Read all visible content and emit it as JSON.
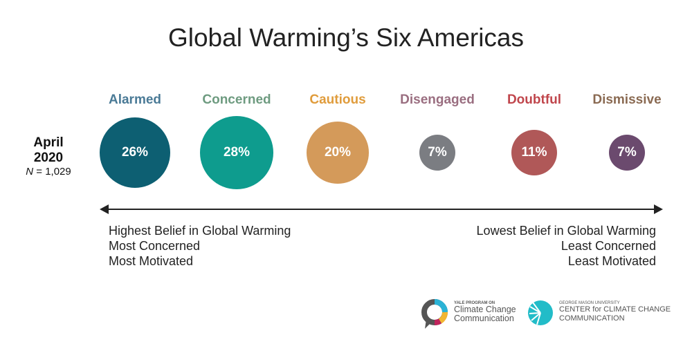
{
  "chart_data": {
    "type": "bubble",
    "title": "Global Warming’s Six Americas",
    "date_label": {
      "month": "April",
      "year": "2020",
      "n_prefix": "N",
      "n_value": "= 1,029"
    },
    "categories": [
      "Alarmed",
      "Concerned",
      "Cautious",
      "Disengaged",
      "Doubtful",
      "Dismissive"
    ],
    "values": [
      26,
      28,
      20,
      7,
      11,
      7
    ],
    "value_labels": [
      "26%",
      "28%",
      "20%",
      "7%",
      "11%",
      "7%"
    ],
    "bubble_colors": [
      "#0d5f72",
      "#0e9c8e",
      "#d49a5a",
      "#7b7d82",
      "#b05858",
      "#6b4a6e"
    ],
    "label_colors": [
      "#4a7a96",
      "#6e9b80",
      "#e09c3c",
      "#9a6e80",
      "#c0464c",
      "#8a6a52"
    ],
    "axis": {
      "left": [
        "Highest Belief in Global Warming",
        "Most Concerned",
        "Most Motivated"
      ],
      "right": [
        "Lowest Belief in Global Warming",
        "Least Concerned",
        "Least Motivated"
      ]
    }
  },
  "logos": {
    "yale": {
      "small": "YALE PROGRAM ON",
      "line1": "Climate Change",
      "line2": "Communication"
    },
    "gmu": {
      "small": "GEORGE MASON UNIVERSITY",
      "line1": "CENTER for CLIMATE CHANGE",
      "line2": "COMMUNICATION"
    }
  }
}
